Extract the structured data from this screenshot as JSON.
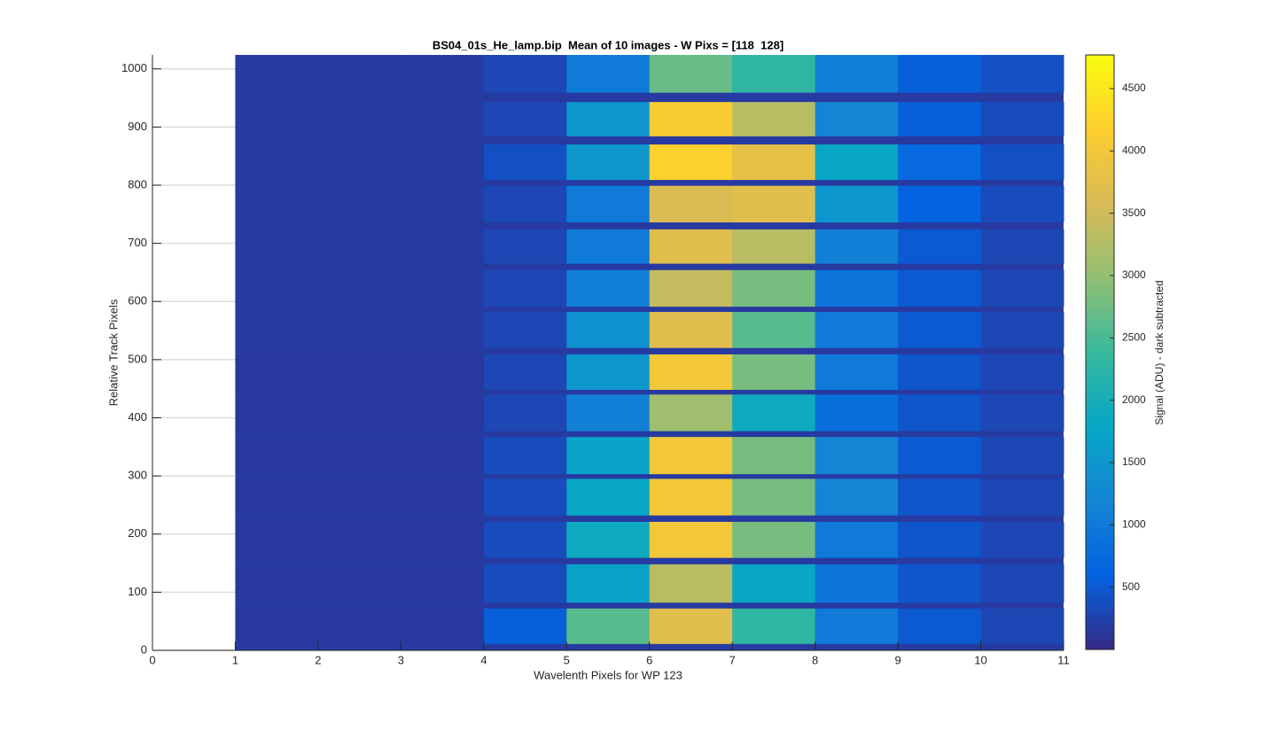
{
  "chart_data": {
    "type": "heatmap",
    "title": "BS04_01s_He_lamp.bip  Mean of 10 images - W Pixs = [118  128]",
    "x_label": "Wavelenth Pixels for WP 123",
    "y_label": "Relative Track Pixels",
    "colorbar_label": "Signal (ADU) - dark subtracted",
    "colormap": "parula",
    "grid": true,
    "xlim": [
      0,
      11
    ],
    "xticks": [
      0,
      1,
      2,
      3,
      4,
      5,
      6,
      7,
      8,
      9,
      10,
      11
    ],
    "ylim": [
      0,
      1024
    ],
    "yticks": [
      0,
      100,
      200,
      300,
      400,
      500,
      600,
      700,
      800,
      900,
      1000
    ],
    "clim": [
      0,
      4770
    ],
    "cticks": [
      500,
      1000,
      1500,
      2000,
      2500,
      3000,
      3500,
      4000,
      4500
    ],
    "x": [
      1,
      2,
      3,
      4,
      5,
      6,
      7,
      8,
      9,
      10,
      11
    ],
    "background": 170,
    "rows": [
      {
        "y": [
          11,
          72
        ],
        "values": [
          150,
          150,
          150,
          550,
          2600,
          3700,
          2300,
          1000,
          500,
          300
        ]
      },
      {
        "y": [
          82,
          148
        ],
        "values": [
          150,
          150,
          150,
          350,
          1700,
          3300,
          1800,
          900,
          450,
          300
        ]
      },
      {
        "y": [
          159,
          221
        ],
        "values": [
          150,
          150,
          150,
          350,
          1900,
          4000,
          2800,
          1000,
          450,
          300
        ]
      },
      {
        "y": [
          232,
          295
        ],
        "values": [
          150,
          150,
          150,
          350,
          1800,
          4000,
          2800,
          1200,
          450,
          300
        ]
      },
      {
        "y": [
          303,
          367
        ],
        "values": [
          150,
          150,
          150,
          350,
          1700,
          4000,
          2800,
          1200,
          500,
          300
        ]
      },
      {
        "y": [
          377,
          440
        ],
        "values": [
          150,
          150,
          150,
          300,
          1100,
          3100,
          1900,
          800,
          450,
          300
        ]
      },
      {
        "y": [
          448,
          509
        ],
        "values": [
          150,
          150,
          150,
          300,
          1500,
          4000,
          2800,
          1000,
          450,
          300
        ]
      },
      {
        "y": [
          520,
          582
        ],
        "values": [
          180,
          180,
          180,
          300,
          1400,
          3700,
          2600,
          1000,
          500,
          300
        ]
      },
      {
        "y": [
          591,
          654
        ],
        "values": [
          180,
          180,
          180,
          300,
          1100,
          3400,
          2800,
          900,
          500,
          300
        ]
      },
      {
        "y": [
          665,
          724
        ],
        "values": [
          180,
          180,
          180,
          300,
          1000,
          3700,
          3300,
          1100,
          500,
          300
        ]
      },
      {
        "y": [
          736,
          799
        ],
        "values": [
          180,
          180,
          180,
          300,
          1000,
          3600,
          3700,
          1500,
          600,
          350
        ]
      },
      {
        "y": [
          809,
          870
        ],
        "values": [
          180,
          180,
          180,
          400,
          1500,
          4200,
          3800,
          1800,
          700,
          400
        ]
      },
      {
        "y": [
          884,
          943
        ],
        "values": [
          180,
          180,
          180,
          300,
          1500,
          4100,
          3300,
          1200,
          550,
          350
        ]
      },
      {
        "y": [
          959,
          1024
        ],
        "values": [
          180,
          180,
          180,
          300,
          1000,
          2700,
          2300,
          1100,
          550,
          400
        ]
      }
    ]
  }
}
